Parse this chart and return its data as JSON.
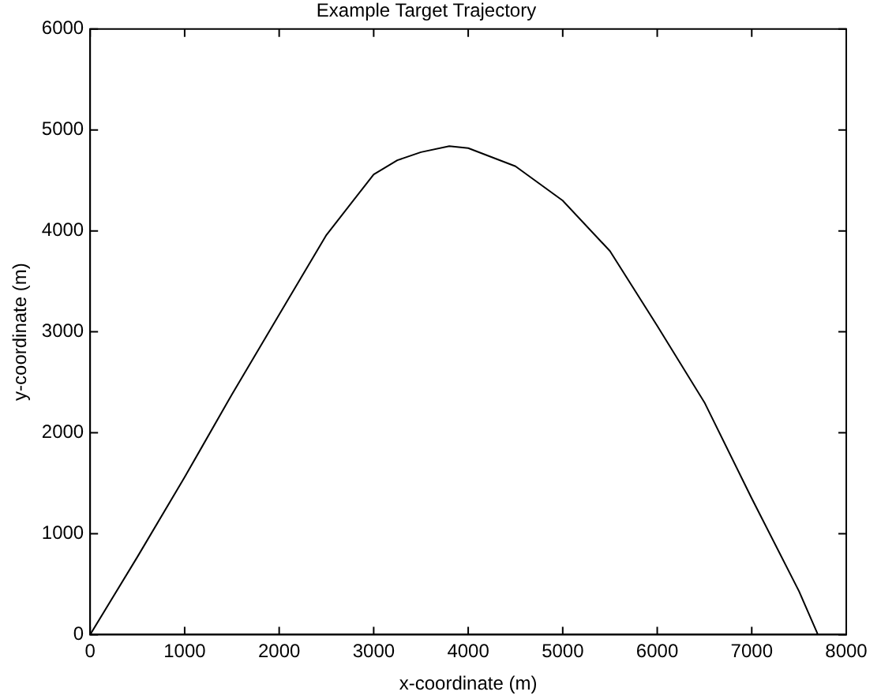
{
  "chart_data": {
    "type": "line",
    "title": "Example Target Trajectory",
    "xlabel": "x-coordinate (m)",
    "ylabel": "y-coordinate (m)",
    "x": [
      0,
      500,
      1000,
      1500,
      2000,
      2500,
      3000,
      3250,
      3500,
      3800,
      4000,
      4500,
      5000,
      5500,
      6000,
      6500,
      7000,
      7500,
      7700
    ],
    "series": [
      {
        "color": "#000000",
        "values": [
          0,
          770,
          1560,
          2380,
          3170,
          3960,
          4560,
          4700,
          4780,
          4840,
          4820,
          4640,
          4300,
          3800,
          3060,
          2300,
          1350,
          430,
          0
        ]
      }
    ],
    "xlim": [
      0,
      8000
    ],
    "xticks": [
      0,
      1000,
      2000,
      3000,
      4000,
      5000,
      6000,
      7000,
      8000
    ],
    "ylim": [
      0,
      6000
    ],
    "yticks": [
      0,
      1000,
      2000,
      3000,
      4000,
      5000,
      6000
    ],
    "grid": false,
    "legend": false,
    "marker": "none",
    "line_style": "solid"
  }
}
